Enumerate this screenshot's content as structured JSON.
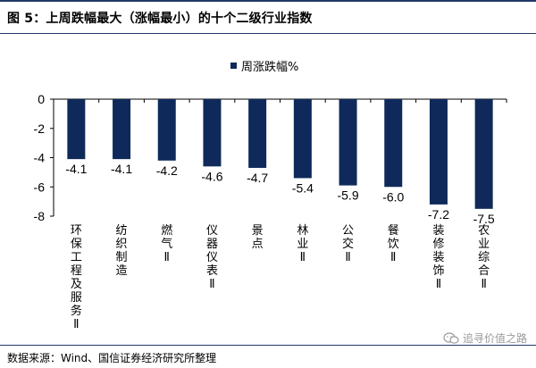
{
  "title": "图 5：上周跌幅最大（涨幅最小）的十个二级行业指数",
  "source": "数据来源：Wind、国信证券经济研究所整理",
  "watermark": {
    "text": "追寻价值之路",
    "icon": "wechat-icon"
  },
  "colors": {
    "bar": "#0f2a5a",
    "axis": "#000000",
    "border": "#1f3a68",
    "watermark": "#9a9a9a"
  },
  "chart_data": {
    "type": "bar",
    "categories": [
      "环保工程及服务Ⅱ",
      "纺织制造",
      "燃气Ⅱ",
      "仪器仪表Ⅱ",
      "景点",
      "林业Ⅱ",
      "公交Ⅱ",
      "餐饮Ⅱ",
      "装修装饰Ⅱ",
      "农业综合Ⅱ"
    ],
    "series": [
      {
        "name": "周涨跌幅%",
        "values": [
          -4.1,
          -4.1,
          -4.2,
          -4.6,
          -4.7,
          -5.4,
          -5.9,
          -6.0,
          -7.2,
          -7.5
        ]
      }
    ],
    "data_labels": [
      "-4.1",
      "-4.1",
      "-4.2",
      "-4.6",
      "-4.7",
      "-5.4",
      "-5.9",
      "-6.0",
      "-7.2",
      "-7.5"
    ],
    "yticks": [
      0,
      -2,
      -4,
      -6,
      -8
    ],
    "ylim": [
      -8,
      0
    ],
    "grid": false,
    "legend": "top-center",
    "title": "",
    "xlabel": "",
    "ylabel": ""
  }
}
